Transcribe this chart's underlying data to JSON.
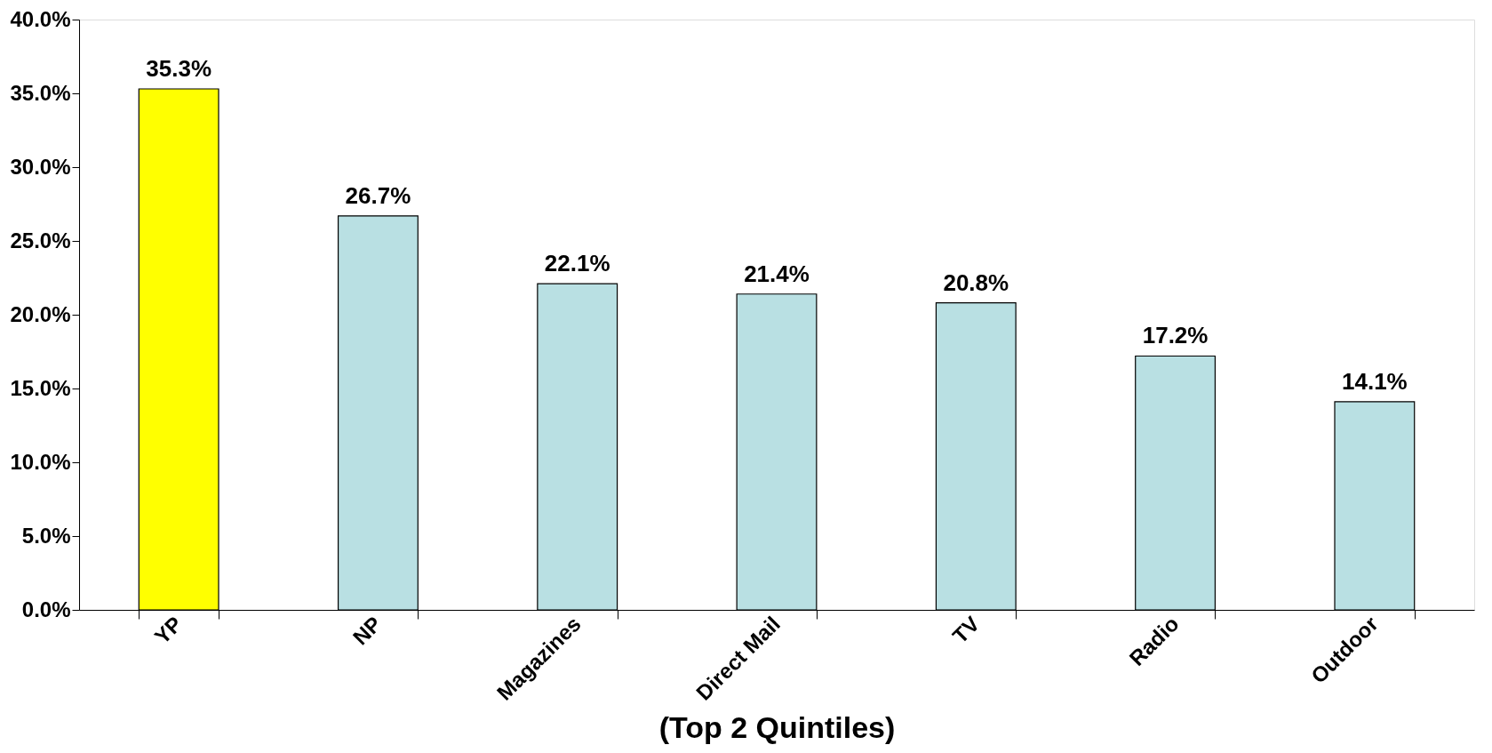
{
  "chart_data": {
    "type": "bar",
    "xlabel": "(Top 2 Quintiles)",
    "categories": [
      "YP",
      "NP",
      "Magazines",
      "Direct Mail",
      "TV",
      "Radio",
      "Outdoor"
    ],
    "values": [
      35.3,
      26.7,
      22.1,
      21.4,
      20.8,
      17.2,
      14.1
    ],
    "colors": [
      "#ffff00",
      "#b9e0e3",
      "#b9e0e3",
      "#b9e0e3",
      "#b9e0e3",
      "#b9e0e3",
      "#b9e0e3"
    ],
    "value_labels": [
      "35.3%",
      "26.7%",
      "22.1%",
      "21.4%",
      "20.8%",
      "17.2%",
      "14.1%"
    ],
    "ylim": [
      0,
      40
    ],
    "yticks": [
      {
        "value": 0,
        "label": "0.0%"
      },
      {
        "value": 5,
        "label": "5.0%"
      },
      {
        "value": 10,
        "label": "10.0%"
      },
      {
        "value": 15,
        "label": "15.0%"
      },
      {
        "value": 20,
        "label": "20.0%"
      },
      {
        "value": 25,
        "label": "25.0%"
      },
      {
        "value": 30,
        "label": "30.0%"
      },
      {
        "value": 35,
        "label": "35.0%"
      },
      {
        "value": 40,
        "label": "40.0%"
      }
    ],
    "grid": false
  }
}
